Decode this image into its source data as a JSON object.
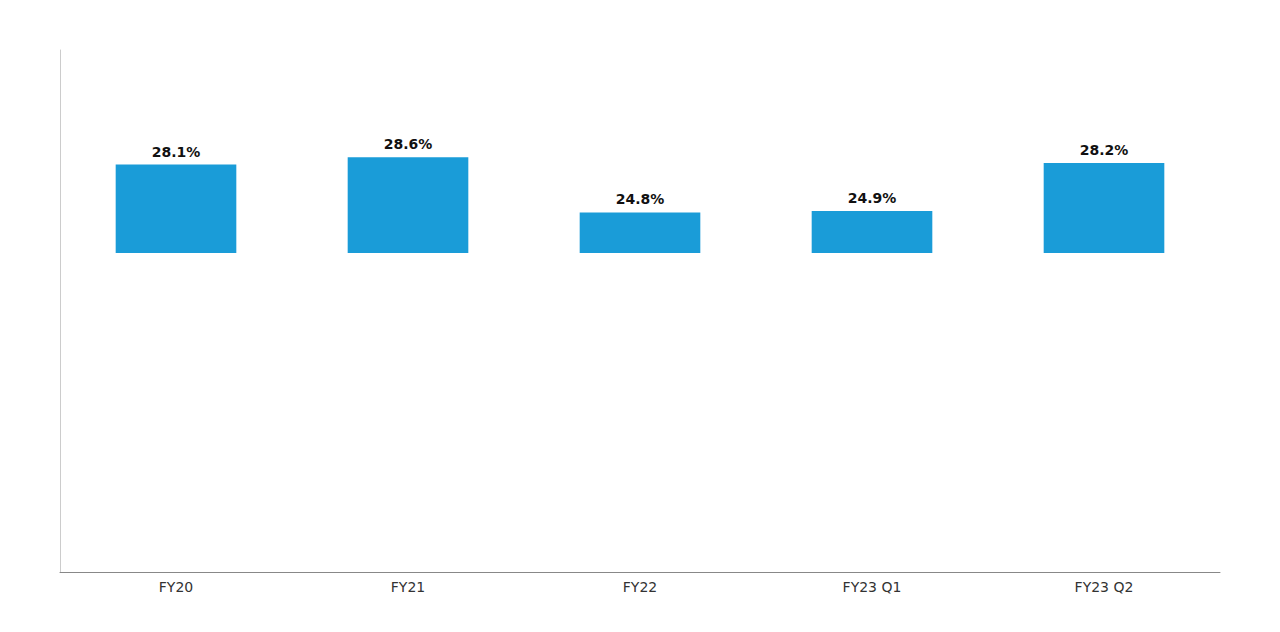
{
  "chart_data": {
    "type": "bar",
    "categories": [
      "FY20",
      "FY21",
      "FY22",
      "FY23 Q1",
      "FY23 Q2"
    ],
    "values": [
      28.1,
      28.6,
      24.8,
      24.9,
      28.2
    ],
    "value_labels": [
      "28.1%",
      "28.6%",
      "24.8%",
      "24.9%",
      "28.2%"
    ],
    "bottom": 22,
    "color": "#1a9cd8",
    "ylim": [
      0,
      36
    ],
    "data_labels": true,
    "tick_labels": "x",
    "grid": false
  }
}
